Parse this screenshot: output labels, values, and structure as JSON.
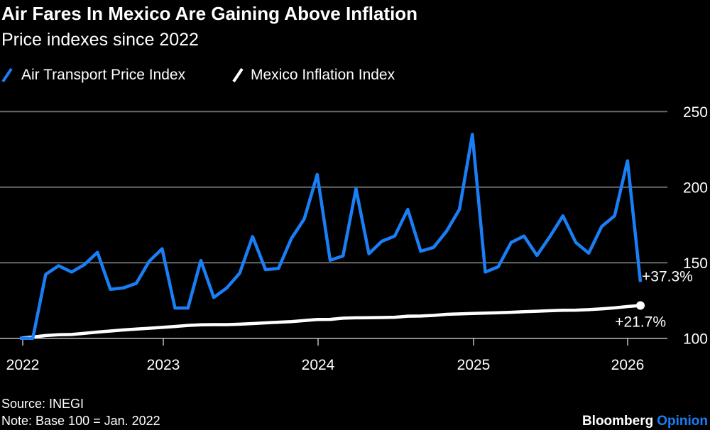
{
  "chart_data": {
    "type": "line",
    "title": "Air Fares In Mexico Are Gaining Above Inflation",
    "subtitle": "Price indexes since 2022",
    "x_start": "2022-01",
    "x_frequency": "monthly",
    "x_ticks": [
      "2022",
      "2023",
      "2024",
      "2025",
      "2026"
    ],
    "y_ticks": [
      "100",
      "150",
      "200",
      "250"
    ],
    "ylim": [
      100,
      250
    ],
    "grid": true,
    "legend_position": "top-left",
    "series": [
      {
        "name": "Air Transport Price Index",
        "color": "#1a7ef5",
        "end_label": "+37.3%",
        "values": [
          100,
          100,
          142.3,
          148,
          143.8,
          148.8,
          156.8,
          132.4,
          133.3,
          136.3,
          150.9,
          159.2,
          120,
          120,
          151.4,
          127,
          133.3,
          143,
          167.3,
          145.4,
          146.2,
          166,
          179,
          208.3,
          151.6,
          154.5,
          198.9,
          155.9,
          164.2,
          167.6,
          185.2,
          157.6,
          160.1,
          170.8,
          185.3,
          234.9,
          143.8,
          147.3,
          163.4,
          167.6,
          154.8,
          167.3,
          181,
          163.4,
          156.3,
          173.9,
          181,
          217.4,
          137.3
        ]
      },
      {
        "name": "Mexico Inflation Index",
        "color": "#ffffff",
        "end_label": "+21.7%",
        "values": [
          100,
          100.8,
          101.8,
          102.3,
          102.5,
          103.3,
          104.1,
          104.8,
          105.5,
          106.1,
          106.6,
          107.2,
          107.8,
          108.5,
          108.9,
          109.0,
          109.0,
          109.3,
          109.7,
          110.2,
          110.6,
          111.0,
          111.7,
          112.4,
          112.5,
          113.3,
          113.5,
          113.6,
          113.7,
          113.9,
          114.6,
          114.7,
          115.1,
          115.8,
          116.1,
          116.4,
          116.6,
          116.9,
          117.2,
          117.6,
          117.9,
          118.2,
          118.5,
          118.6,
          118.9,
          119.5,
          120.1,
          121.0,
          121.7
        ]
      }
    ]
  },
  "footer": {
    "source": "Source: INEGI",
    "note": "Note: Base 100 = Jan. 2022",
    "brand_name": "Bloomberg",
    "brand_suffix": "Opinion",
    "brand_color": "#1a7ef5"
  }
}
